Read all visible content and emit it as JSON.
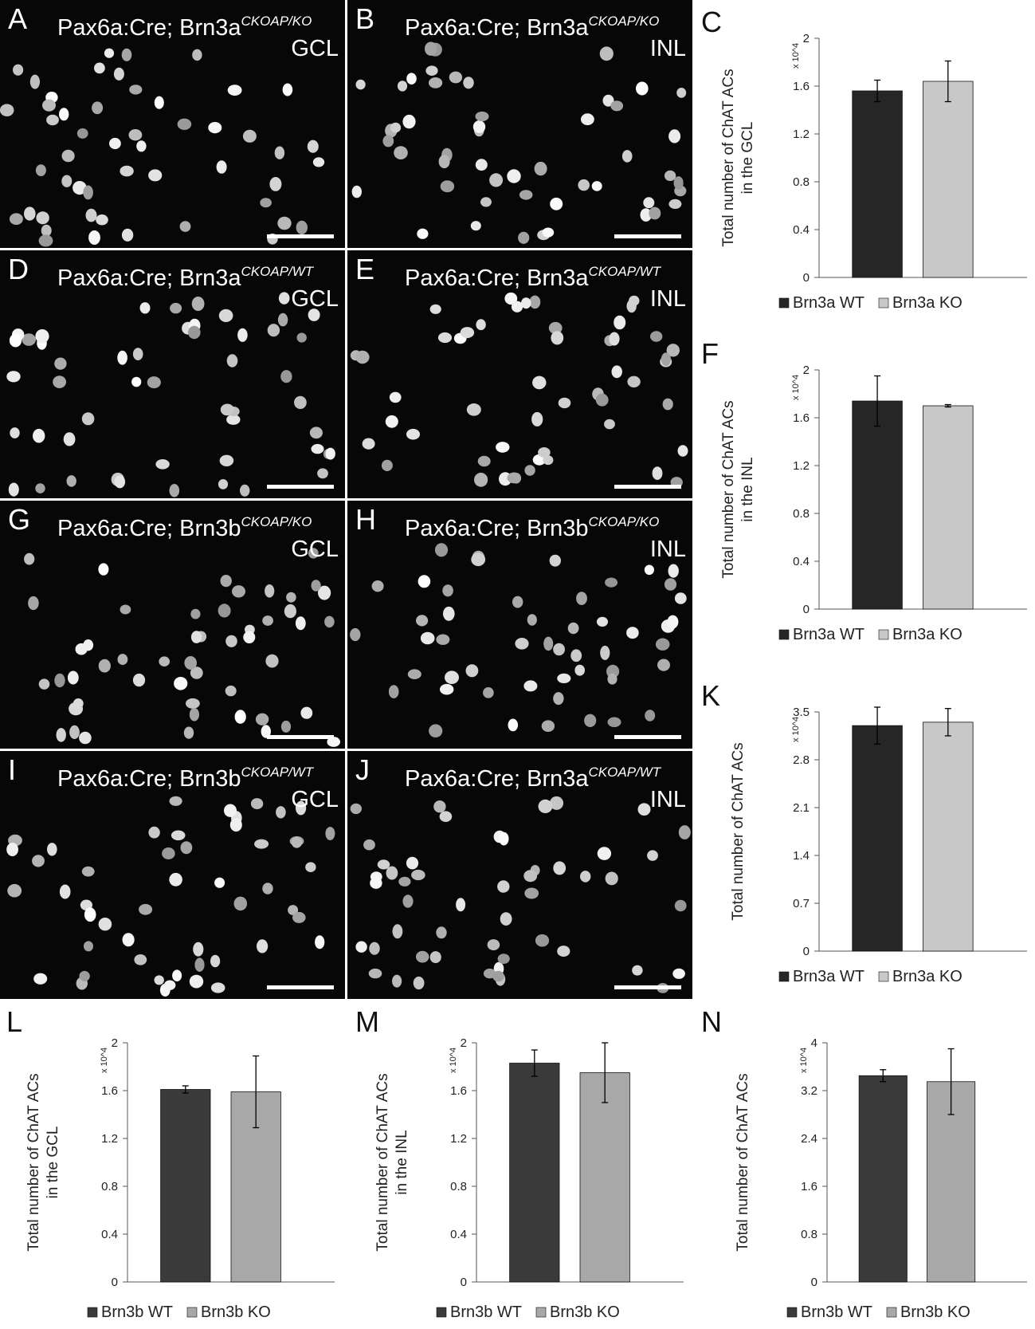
{
  "panels": [
    {
      "id": "A",
      "label": "A",
      "title_main": "Pax6a:Cre; Brn3a",
      "title_sup": "CKOAP/KO",
      "layer": "GCL"
    },
    {
      "id": "B",
      "label": "B",
      "title_main": "Pax6a:Cre; Brn3a",
      "title_sup": "CKOAP/KO",
      "layer": "INL"
    },
    {
      "id": "D",
      "label": "D",
      "title_main": "Pax6a:Cre; Brn3a",
      "title_sup": "CKOAP/WT",
      "layer": "GCL"
    },
    {
      "id": "E",
      "label": "E",
      "title_main": "Pax6a:Cre; Brn3a",
      "title_sup": "CKOAP/WT",
      "layer": "INL"
    },
    {
      "id": "G",
      "label": "G",
      "title_main": "Pax6a:Cre; Brn3b",
      "title_sup": "CKOAP/KO",
      "layer": "GCL"
    },
    {
      "id": "H",
      "label": "H",
      "title_main": "Pax6a:Cre; Brn3b",
      "title_sup": "CKOAP/KO",
      "layer": "INL"
    },
    {
      "id": "I",
      "label": "I",
      "title_main": "Pax6a:Cre; Brn3b",
      "title_sup": "CKOAP/WT",
      "layer": "GCL"
    },
    {
      "id": "J",
      "label": "J",
      "title_main": "Pax6a:Cre; Brn3a",
      "title_sup": "CKOAP/WT",
      "layer": "INL"
    }
  ],
  "chart_data": [
    {
      "panel": "C",
      "type": "bar",
      "categories": [
        "Brn3a WT",
        "Brn3a KO"
      ],
      "values": [
        1.56,
        1.64
      ],
      "errors": [
        0.09,
        0.17
      ],
      "ylabel": "Total number of ChAT ACs in the GCL",
      "yunit": "x 10^4",
      "ylim": [
        0,
        2
      ],
      "yticks": [
        0,
        0.4,
        0.8,
        1.2,
        1.6,
        2
      ],
      "colors": [
        "#262626",
        "#c8c8c8"
      ],
      "legend": "bottom"
    },
    {
      "panel": "F",
      "type": "bar",
      "categories": [
        "Brn3a WT",
        "Brn3a KO"
      ],
      "values": [
        1.74,
        1.7
      ],
      "errors": [
        0.21,
        0.01
      ],
      "ylabel": "Total number of ChAT ACs in the INL",
      "yunit": "x 10^4",
      "ylim": [
        0,
        2
      ],
      "yticks": [
        0,
        0.4,
        0.8,
        1.2,
        1.6,
        2
      ],
      "colors": [
        "#262626",
        "#c8c8c8"
      ],
      "legend": "bottom"
    },
    {
      "panel": "K",
      "type": "bar",
      "categories": [
        "Brn3a WT",
        "Brn3a KO"
      ],
      "values": [
        3.3,
        3.35
      ],
      "errors": [
        0.27,
        0.2
      ],
      "ylabel": "Total number of ChAT ACs",
      "yunit": "x 10^4",
      "ylim": [
        0,
        3.5
      ],
      "yticks": [
        0,
        0.7,
        1.4,
        2.1,
        2.8,
        3.5
      ],
      "colors": [
        "#262626",
        "#c8c8c8"
      ],
      "legend": "bottom"
    },
    {
      "panel": "L",
      "type": "bar",
      "categories": [
        "Brn3b WT",
        "Brn3b KO"
      ],
      "values": [
        1.61,
        1.59
      ],
      "errors": [
        0.03,
        0.3
      ],
      "ylabel": "Total number of ChAT ACs in the GCL",
      "yunit": "x 10^4",
      "ylim": [
        0,
        2
      ],
      "yticks": [
        0,
        0.4,
        0.8,
        1.2,
        1.6,
        2
      ],
      "colors": [
        "#3a3a3a",
        "#a8a8a8"
      ],
      "legend": "bottom"
    },
    {
      "panel": "M",
      "type": "bar",
      "categories": [
        "Brn3b WT",
        "Brn3b KO"
      ],
      "values": [
        1.83,
        1.75
      ],
      "errors": [
        0.11,
        0.25
      ],
      "ylabel": "Total number of ChAT ACs in the INL",
      "yunit": "x 10^4",
      "ylim": [
        0,
        2
      ],
      "yticks": [
        0,
        0.4,
        0.8,
        1.2,
        1.6,
        2
      ],
      "colors": [
        "#3a3a3a",
        "#a8a8a8"
      ],
      "legend": "bottom"
    },
    {
      "panel": "N",
      "type": "bar",
      "categories": [
        "Brn3b WT",
        "Brn3b KO"
      ],
      "values": [
        3.45,
        3.35
      ],
      "errors": [
        0.1,
        0.55
      ],
      "ylabel": "Total number of ChAT ACs",
      "yunit": "x 10^4",
      "ylim": [
        0,
        4
      ],
      "yticks": [
        0,
        0.8,
        1.6,
        2.4,
        3.2,
        4
      ],
      "colors": [
        "#3a3a3a",
        "#a8a8a8"
      ],
      "legend": "bottom"
    }
  ]
}
